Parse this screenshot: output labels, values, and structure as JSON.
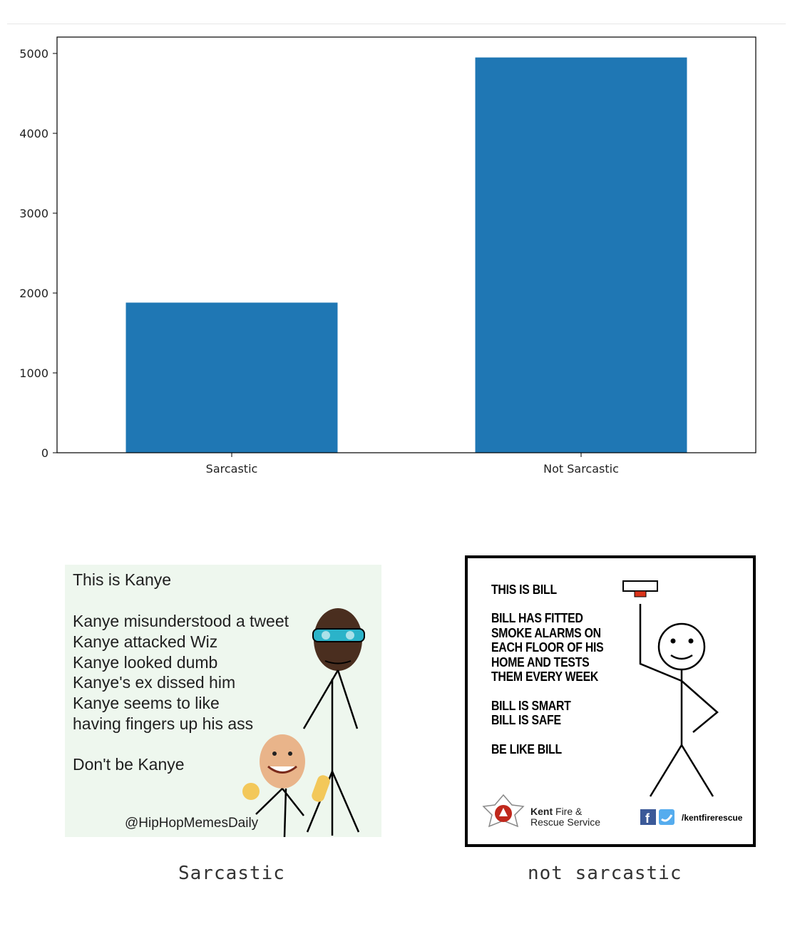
{
  "chart_data": {
    "type": "bar",
    "categories": [
      "Sarcastic",
      "Not Sarcastic"
    ],
    "values": [
      1880,
      4950
    ],
    "ylim": [
      0,
      5200
    ],
    "yticks": [
      0,
      1000,
      2000,
      3000,
      4000,
      5000
    ],
    "bar_color": "#1f77b4",
    "title": "",
    "xlabel": "",
    "ylabel": "",
    "grid": false
  },
  "left_meme": {
    "title": "This is Kanye",
    "lines": [
      "Kanye misunderstood a tweet",
      "Kanye attacked Wiz",
      "Kanye looked dumb",
      "Kanye's ex dissed him",
      "Kanye seems to like",
      "having fingers up his ass"
    ],
    "closing": "Don't be Kanye",
    "handle": "@HipHopMemesDaily",
    "caption": "Sarcastic"
  },
  "right_meme": {
    "title": "THIS IS BILL",
    "lines": [
      "BILL HAS FITTED",
      "SMOKE ALARMS ON",
      "EACH FLOOR OF HIS",
      "HOME AND TESTS",
      "THEM EVERY WEEK"
    ],
    "lines2": [
      "BILL IS SMART",
      "BILL IS SAFE"
    ],
    "closing": "BE LIKE BILL",
    "org_bold": "Kent",
    "org_rest_1": "Fire &",
    "org_rest_2": "Rescue Service",
    "social_handle": "/kentfirerescue",
    "caption": "not sarcastic"
  },
  "icons": [
    "facebook-icon",
    "twitter-icon",
    "fire-service-crest-icon",
    "smoke-alarm-icon"
  ]
}
